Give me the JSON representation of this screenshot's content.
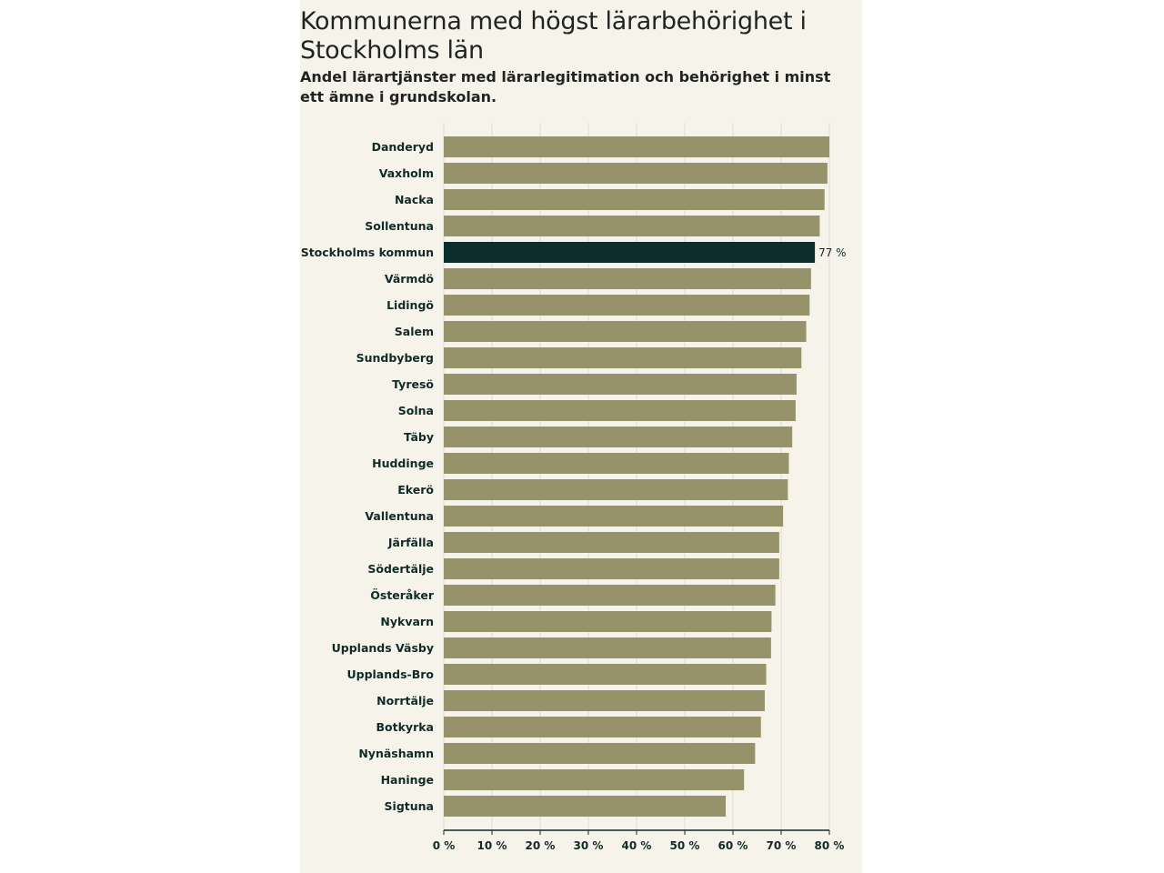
{
  "title": "Kommunerna med högst lärarbehörighet i Stockholms län",
  "subtitle": "Andel lärartjänster med lärarlegitimation och behörighet i minst ett ämne i grundskolan.",
  "colors": {
    "bar": "#96936a",
    "highlight": "#0b2d2b",
    "background": "#f6f4ea",
    "grid": "#e0ded2",
    "text": "#0f2a28"
  },
  "chart_data": {
    "type": "bar",
    "orientation": "horizontal",
    "title": "Kommunerna med högst lärarbehörighet i Stockholms län",
    "subtitle": "Andel lärartjänster med lärarlegitimation och behörighet i minst ett ämne i grundskolan.",
    "xlabel": "",
    "ylabel": "",
    "xlim": [
      0,
      80
    ],
    "ticks": [
      0,
      10,
      20,
      30,
      40,
      50,
      60,
      70,
      80
    ],
    "tick_labels": [
      "0 %",
      "10 %",
      "20 %",
      "30 %",
      "40 %",
      "50 %",
      "60 %",
      "70 %",
      "80 %"
    ],
    "grid": true,
    "highlight": "Stockholms kommun",
    "highlight_label": "77 %",
    "categories": [
      "Danderyd",
      "Vaxholm",
      "Nacka",
      "Sollentuna",
      "Stockholms kommun",
      "Värmdö",
      "Lidingö",
      "Salem",
      "Sundbyberg",
      "Tyresö",
      "Solna",
      "Täby",
      "Huddinge",
      "Ekerö",
      "Vallentuna",
      "Järfälla",
      "Södertälje",
      "Österåker",
      "Nykvarn",
      "Upplands Väsby",
      "Upplands-Bro",
      "Norrtälje",
      "Botkyrka",
      "Nynäshamn",
      "Haninge",
      "Sigtuna"
    ],
    "values": [
      80.0,
      79.6,
      79.0,
      78.0,
      77.0,
      76.2,
      75.9,
      75.2,
      74.2,
      73.2,
      73.0,
      72.3,
      71.6,
      71.4,
      70.4,
      69.6,
      69.6,
      68.8,
      68.0,
      67.9,
      66.9,
      66.6,
      65.8,
      64.6,
      62.3,
      58.5
    ]
  }
}
